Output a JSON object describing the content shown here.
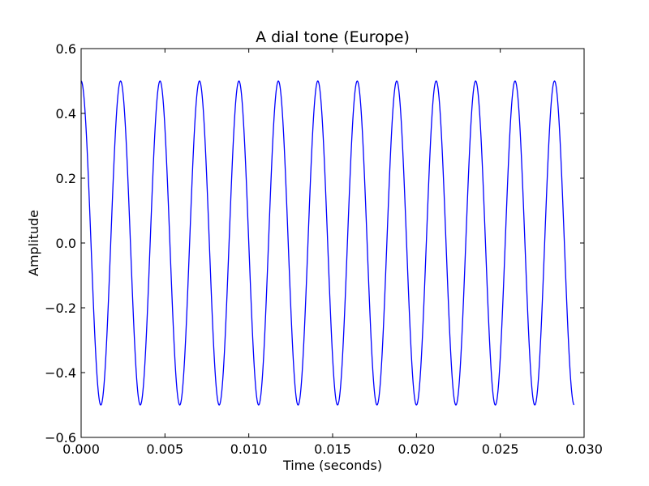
{
  "chart_data": {
    "type": "line",
    "title": "A dial tone (Europe)",
    "xlabel": "Time (seconds)",
    "ylabel": "Amplitude",
    "xlim": [
      0.0,
      0.03
    ],
    "ylim": [
      -0.6,
      0.6
    ],
    "xticks": [
      "0.000",
      "0.005",
      "0.010",
      "0.015",
      "0.020",
      "0.025",
      "0.030"
    ],
    "yticks": [
      "−0.6",
      "−0.4",
      "−0.2",
      "0.0",
      "0.2",
      "0.4",
      "0.6"
    ],
    "grid": false,
    "series": [
      {
        "function": "cosine",
        "amplitude": 0.5,
        "frequency_hz": 425,
        "x_start": 0.0,
        "x_end": 0.0294,
        "color": "#0000ff"
      }
    ]
  }
}
